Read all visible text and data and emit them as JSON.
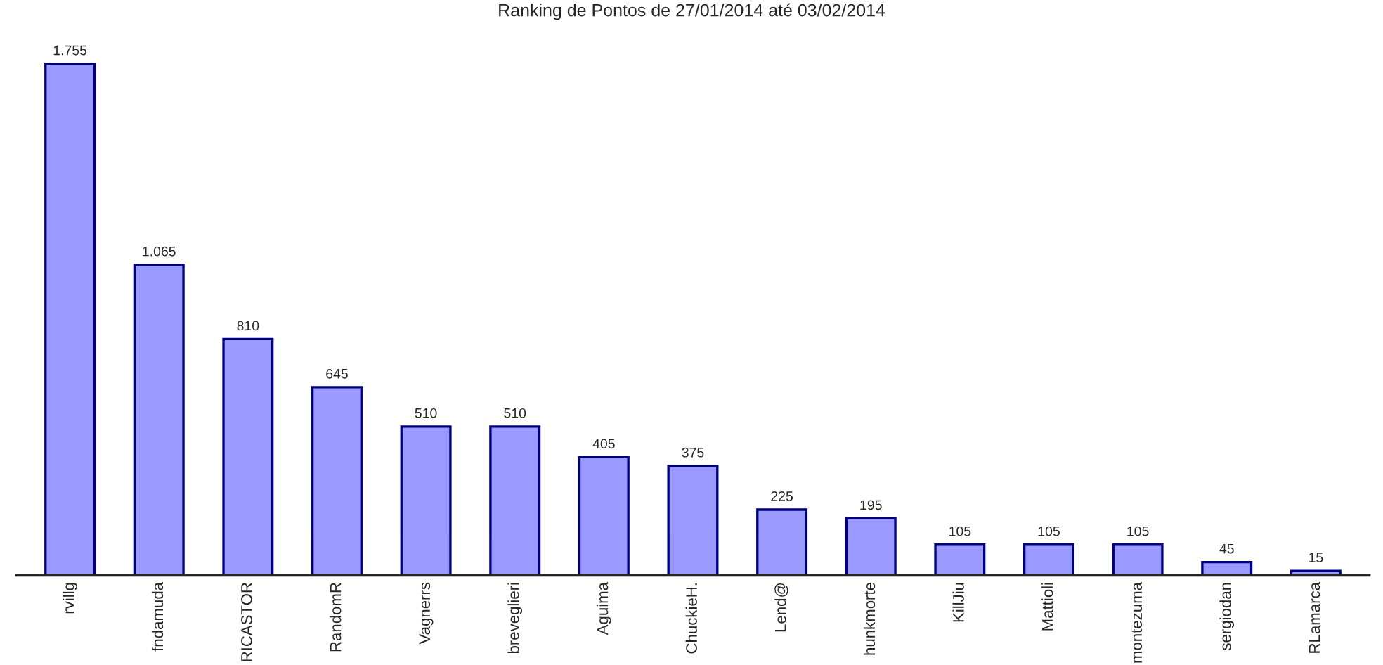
{
  "chart_data": {
    "type": "bar",
    "title": "Ranking de Pontos de 27/01/2014 até 03/02/2014",
    "categories": [
      "rvillg",
      "fndamuda",
      "RICASTOR",
      "RandomR",
      "Vagnerrs",
      "breveglieri",
      "Aguima",
      "ChuckieH.",
      "Lend@",
      "hunkmorte",
      "KillJiu",
      "Mattioli",
      "montezuma",
      "sergiodan",
      "RLamarca"
    ],
    "values": [
      1755,
      1065,
      810,
      645,
      510,
      510,
      405,
      375,
      225,
      195,
      105,
      105,
      105,
      45,
      15
    ],
    "value_labels": [
      "1.755",
      "1.065",
      "810",
      "645",
      "510",
      "510",
      "405",
      "375",
      "225",
      "195",
      "105",
      "105",
      "105",
      "45",
      "15"
    ],
    "color": "#9999ff",
    "grid": false,
    "legend": false,
    "tick_labels": "x"
  }
}
